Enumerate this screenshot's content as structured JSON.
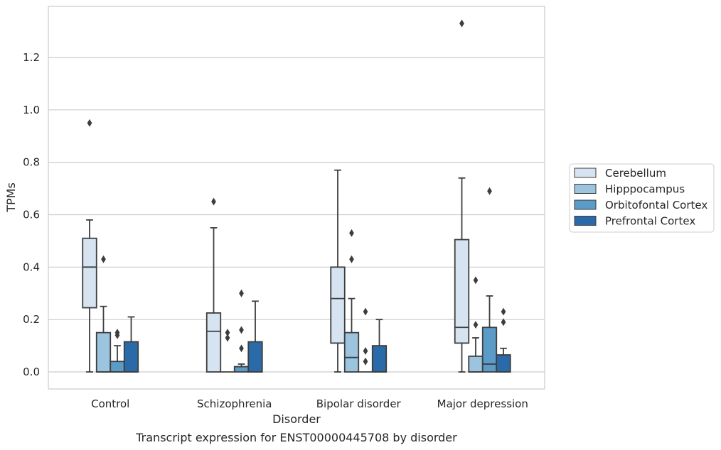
{
  "chart_data": {
    "type": "box",
    "title": "",
    "caption": "Transcript expression for ENST00000445708 by disorder",
    "xlabel": "Disorder",
    "ylabel": "TPMs",
    "ylim": [
      -0.065,
      1.395
    ],
    "yticks": [
      0.0,
      0.2,
      0.4,
      0.6,
      0.8,
      1.0,
      1.2
    ],
    "ytick_labels": [
      "0.0",
      "0.2",
      "0.4",
      "0.6",
      "0.8",
      "1.0",
      "1.2"
    ],
    "grid": "horizontal",
    "legend_position": "right",
    "categories": [
      "Control",
      "Schizophrenia",
      "Bipolar disorder",
      "Major depression"
    ],
    "series": [
      {
        "name": "Cerebellum",
        "color": "#d6e4f2",
        "boxes": [
          {
            "min": 0.0,
            "q1": 0.245,
            "median": 0.4,
            "q3": 0.51,
            "max": 0.58,
            "outliers": [
              0.95
            ]
          },
          {
            "min": 0.0,
            "q1": 0.0,
            "median": 0.155,
            "q3": 0.225,
            "max": 0.55,
            "outliers": [
              0.65
            ]
          },
          {
            "min": 0.0,
            "q1": 0.11,
            "median": 0.28,
            "q3": 0.4,
            "max": 0.77,
            "outliers": []
          },
          {
            "min": 0.0,
            "q1": 0.11,
            "median": 0.17,
            "q3": 0.505,
            "max": 0.74,
            "outliers": [
              1.33
            ]
          }
        ]
      },
      {
        "name": "Hipppocampus",
        "color": "#9cc4de",
        "boxes": [
          {
            "min": 0.0,
            "q1": 0.0,
            "median": 0.0,
            "q3": 0.15,
            "max": 0.25,
            "outliers": [
              0.43
            ]
          },
          {
            "min": 0.0,
            "q1": 0.0,
            "median": 0.0,
            "q3": 0.0,
            "max": 0.0,
            "outliers": [
              0.15,
              0.13
            ]
          },
          {
            "min": 0.0,
            "q1": 0.0,
            "median": 0.055,
            "q3": 0.15,
            "max": 0.28,
            "outliers": [
              0.53,
              0.43
            ]
          },
          {
            "min": 0.0,
            "q1": 0.0,
            "median": 0.0,
            "q3": 0.06,
            "max": 0.13,
            "outliers": [
              0.35,
              0.18
            ]
          }
        ]
      },
      {
        "name": "Orbitofontal Cortex",
        "color": "#5b9bc8",
        "boxes": [
          {
            "min": 0.0,
            "q1": 0.0,
            "median": 0.0,
            "q3": 0.04,
            "max": 0.1,
            "outliers": [
              0.15,
              0.14
            ]
          },
          {
            "min": 0.0,
            "q1": 0.0,
            "median": 0.02,
            "q3": 0.02,
            "max": 0.03,
            "outliers": [
              0.3,
              0.16,
              0.09
            ]
          },
          {
            "min": 0.0,
            "q1": 0.0,
            "median": 0.0,
            "q3": 0.0,
            "max": 0.0,
            "outliers": [
              0.23,
              0.08,
              0.04
            ]
          },
          {
            "min": 0.0,
            "q1": 0.0,
            "median": 0.03,
            "q3": 0.17,
            "max": 0.29,
            "outliers": [
              0.69
            ]
          }
        ]
      },
      {
        "name": "Prefrontal Cortex",
        "color": "#2b6aa8",
        "boxes": [
          {
            "min": 0.0,
            "q1": 0.0,
            "median": 0.0,
            "q3": 0.115,
            "max": 0.21,
            "outliers": []
          },
          {
            "min": 0.0,
            "q1": 0.0,
            "median": 0.0,
            "q3": 0.115,
            "max": 0.27,
            "outliers": []
          },
          {
            "min": 0.0,
            "q1": 0.0,
            "median": 0.0,
            "q3": 0.1,
            "max": 0.2,
            "outliers": []
          },
          {
            "min": 0.0,
            "q1": 0.0,
            "median": 0.0,
            "q3": 0.065,
            "max": 0.09,
            "outliers": [
              0.23,
              0.19
            ]
          }
        ]
      }
    ]
  }
}
